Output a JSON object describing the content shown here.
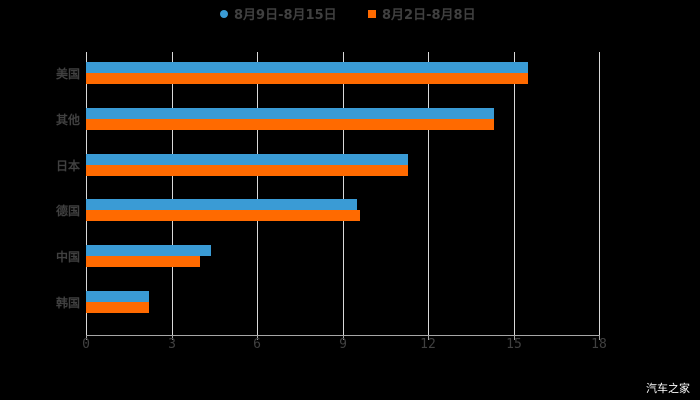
{
  "chart_data": {
    "type": "bar",
    "orientation": "horizontal",
    "title": "",
    "categories": [
      "美国",
      "其他",
      "日本",
      "德国",
      "中国",
      "韩国"
    ],
    "series": [
      {
        "name": "8月9日-8月15日",
        "color": "#3a9bd5",
        "values": [
          15.5,
          14.3,
          11.3,
          9.5,
          4.4,
          2.2
        ]
      },
      {
        "name": "8月2日-8月8日",
        "color": "#ff6a00",
        "values": [
          15.5,
          14.3,
          11.3,
          9.6,
          4.0,
          2.2
        ]
      }
    ],
    "xlabel": "",
    "ylabel": "",
    "xlim": [
      0,
      18
    ],
    "xticks": [
      0,
      3,
      6,
      9,
      12,
      15,
      18
    ],
    "grid": true,
    "legend_position": "top"
  },
  "legend": {
    "series1": "8月9日-8月15日",
    "series2": "8月2日-8月8日"
  },
  "axis": {
    "ticks": [
      "0",
      "3",
      "6",
      "9",
      "12",
      "15",
      "18"
    ]
  },
  "watermark": "汽车之家"
}
